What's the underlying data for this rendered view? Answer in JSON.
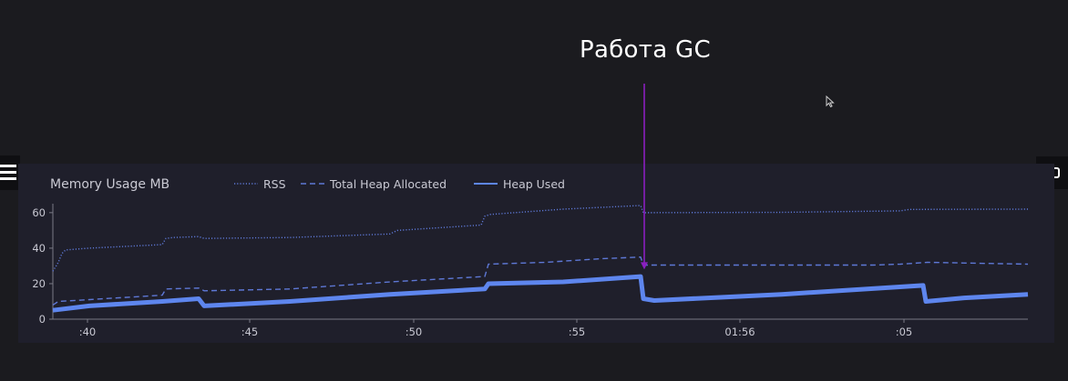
{
  "annotation": {
    "text": "Работа GC",
    "color": "#8a1fbf"
  },
  "icons": {
    "menu": "hamburger-icon",
    "panel": "window-icon",
    "cursor": "mouse-cursor-icon"
  },
  "chart_data": {
    "type": "line",
    "title": "Memory Usage MB",
    "ylim": [
      0,
      63
    ],
    "yticks": [
      0,
      20,
      40,
      60
    ],
    "xlim": [
      0,
      1070
    ],
    "xticks": [
      {
        "x": 38,
        "label": ":40"
      },
      {
        "x": 216,
        "label": ":45"
      },
      {
        "x": 396,
        "label": ":50"
      },
      {
        "x": 575,
        "label": ":55"
      },
      {
        "x": 754,
        "label": "01:56"
      },
      {
        "x": 934,
        "label": ":05"
      }
    ],
    "grid": false,
    "legend_position": "top",
    "annotation_x": 648,
    "series": [
      {
        "name": "RSS",
        "style": "dotted",
        "color": "#5e78d6",
        "points": [
          [
            0,
            27
          ],
          [
            6,
            32
          ],
          [
            10,
            37
          ],
          [
            14,
            39
          ],
          [
            40,
            40
          ],
          [
            120,
            42
          ],
          [
            124,
            45.5
          ],
          [
            132,
            46
          ],
          [
            160,
            46.5
          ],
          [
            166,
            45.5
          ],
          [
            260,
            46
          ],
          [
            370,
            48
          ],
          [
            378,
            50
          ],
          [
            470,
            53
          ],
          [
            474,
            58
          ],
          [
            480,
            59
          ],
          [
            560,
            62
          ],
          [
            645,
            64
          ],
          [
            648,
            60
          ],
          [
            800,
            60.2
          ],
          [
            930,
            61
          ],
          [
            940,
            61.8
          ],
          [
            1070,
            62
          ]
        ]
      },
      {
        "name": "Total Heap Allocated",
        "style": "dashed",
        "color": "#5e78d6",
        "points": [
          [
            0,
            8
          ],
          [
            6,
            10
          ],
          [
            40,
            11
          ],
          [
            120,
            13.5
          ],
          [
            124,
            17
          ],
          [
            160,
            17.5
          ],
          [
            166,
            16
          ],
          [
            260,
            17
          ],
          [
            370,
            21
          ],
          [
            474,
            24
          ],
          [
            478,
            31
          ],
          [
            540,
            32
          ],
          [
            600,
            34
          ],
          [
            645,
            35
          ],
          [
            648,
            30.5
          ],
          [
            900,
            30.5
          ],
          [
            930,
            31
          ],
          [
            960,
            32
          ],
          [
            1070,
            31
          ]
        ]
      },
      {
        "name": "Heap Used",
        "style": "solid",
        "color": "#5e86ee",
        "points": [
          [
            0,
            5
          ],
          [
            40,
            7.5
          ],
          [
            120,
            10
          ],
          [
            160,
            11.5
          ],
          [
            166,
            7.5
          ],
          [
            260,
            10
          ],
          [
            370,
            14
          ],
          [
            474,
            17
          ],
          [
            478,
            20
          ],
          [
            560,
            21
          ],
          [
            645,
            24
          ],
          [
            648,
            11.5
          ],
          [
            660,
            10.5
          ],
          [
            800,
            14
          ],
          [
            955,
            19
          ],
          [
            958,
            10
          ],
          [
            1000,
            12
          ],
          [
            1070,
            14
          ]
        ]
      }
    ]
  }
}
